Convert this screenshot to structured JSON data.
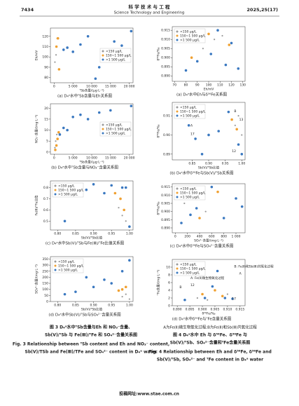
{
  "header": {
    "page": "7434",
    "journal_cn": "科 学 技 术 与 工 程",
    "journal_en": "Science Technology and Engineering",
    "issue": "2025,25(17)"
  },
  "chart_data": [
    {
      "type": "scatter",
      "caption": "(a) D₄ᵃ水中ᵀSb含量与Eh关系图",
      "xlabel": "ᵀSb含量/(μg·L⁻¹)",
      "ylabel": "Eh/mV",
      "xlim": [
        -1000,
        21000
      ],
      "ylim": [
        75,
        128
      ],
      "xticks": [
        0,
        {
          "value": 5000,
          "label": "5 000"
        },
        {
          "value": 10000,
          "label": "10 000"
        },
        {
          "value": 15000,
          "label": "15 000"
        },
        {
          "value": 20000,
          "label": "20 000"
        }
      ],
      "yticks": [
        80,
        90,
        100,
        110,
        120
      ],
      "legend": "center right",
      "series": [
        {
          "name": "<150 μg/L",
          "color": "#9a9a9a",
          "x": [
            200,
            500,
            800
          ],
          "y": [
            95,
            102,
            118
          ]
        },
        {
          "name": "150~1 500 μg/L",
          "color": "#f0a030",
          "x": [
            600,
            1000,
            1300
          ],
          "y": [
            110,
            118,
            88
          ]
        },
        {
          "name": ">1 500 μg/L",
          "color": "#3a78c0",
          "x": [
            2500,
            3500,
            5000,
            7000,
            9000,
            11000,
            12000,
            16000,
            18000,
            20500
          ],
          "y": [
            107,
            109,
            105,
            112,
            120,
            79,
            90,
            115,
            111,
            125
          ]
        }
      ]
    },
    {
      "type": "scatter",
      "caption": "(b) D₄ᵃ水中ᵀSb含量与NO₃⁻含量关系图",
      "xlabel": "ᵀSb含量/(μg·L⁻¹)",
      "ylabel": "NO₃⁻含量/(mg·L⁻¹)",
      "xlim": [
        -1000,
        21000
      ],
      "ylim": [
        -1,
        22
      ],
      "xticks": [
        0,
        {
          "value": 5000,
          "label": "5 000"
        },
        {
          "value": 10000,
          "label": "10 000"
        },
        {
          "value": 15000,
          "label": "15 000"
        },
        {
          "value": 20000,
          "label": "20 000"
        }
      ],
      "yticks": [
        0,
        5,
        10,
        15,
        20
      ],
      "legend": "center right",
      "series": [
        {
          "name": "<150 μg/L",
          "color": "#9a9a9a",
          "x": [
            200,
            400,
            700
          ],
          "y": [
            2,
            5,
            8
          ]
        },
        {
          "name": "150~1 500 μg/L",
          "color": "#f0a030",
          "x": [
            300,
            600,
            900,
            1200
          ],
          "y": [
            1,
            3,
            6,
            9
          ]
        },
        {
          "name": ">1 500 μg/L",
          "color": "#3a78c0",
          "x": [
            1500,
            2500,
            3500,
            5000,
            7000,
            9000,
            12000,
            15000,
            20500
          ],
          "y": [
            8,
            11,
            10,
            16,
            17,
            15,
            18,
            19,
            21
          ]
        }
      ]
    },
    {
      "type": "scatter",
      "caption": "(c) D₄ᵃ水中Sb(Ⅴ)/ᵀSb与Fe(Ⅲ)/ᵀFe比值关系图",
      "xlabel": "Sb(Ⅴ)/ᵀSb比值",
      "ylabel": "Fe(Ⅲ)/ᵀFe比值",
      "xlim": [
        0.78,
        1.01
      ],
      "ylim": [
        0.42,
        0.86
      ],
      "xticks": [
        {
          "value": 0.8,
          "label": "0.80"
        },
        {
          "value": 0.85,
          "label": "0.85"
        },
        {
          "value": 0.9,
          "label": "0.90"
        },
        {
          "value": 0.95,
          "label": "0.95"
        },
        {
          "value": 1,
          "label": "1.00"
        }
      ],
      "yticks": [
        0.5,
        0.6,
        0.7,
        0.8
      ],
      "legend": "upper left",
      "series": [
        {
          "name": "<150 μg/L",
          "color": "#9a9a9a",
          "x": [
            0.97,
            0.98,
            0.99
          ],
          "y": [
            0.62,
            0.55,
            0.5
          ]
        },
        {
          "name": "150~1 500 μg/L",
          "color": "#f0a030",
          "x": [
            0.96,
            0.975,
            0.985
          ],
          "y": [
            0.75,
            0.7,
            0.6
          ]
        },
        {
          "name": ">1 500 μg/L",
          "color": "#3a78c0",
          "x": [
            0.82,
            0.85,
            0.88,
            0.9,
            0.93,
            0.95,
            0.98,
            0.99,
            1
          ],
          "y": [
            0.5,
            0.79,
            0.78,
            0.83,
            0.75,
            0.82,
            0.8,
            0.8,
            0.45
          ]
        }
      ]
    },
    {
      "type": "scatter",
      "caption": "(d) D₄ᵃ水中Sb(Ⅴ)/ᵀSb与SO₄²⁻含量关系图",
      "xlabel": "Sb(Ⅴ)/ᵀSb比值",
      "ylabel": "SO₄²⁻含量/(mg·L⁻¹)",
      "xlim": [
        0.78,
        1.01
      ],
      "ylim": [
        0,
        370
      ],
      "xticks": [
        {
          "value": 0.8,
          "label": "0.80"
        },
        {
          "value": 0.85,
          "label": "0.85"
        },
        {
          "value": 0.9,
          "label": "0.90"
        },
        {
          "value": 0.95,
          "label": "0.95"
        },
        {
          "value": 1,
          "label": "1.00"
        }
      ],
      "yticks": [
        0,
        50,
        100,
        150,
        200,
        250,
        300,
        350
      ],
      "legend": "upper left",
      "series": [
        {
          "name": "<150 μg/L",
          "color": "#9a9a9a",
          "x": [
            0.98,
            0.99,
            1
          ],
          "y": [
            40,
            60,
            20
          ]
        },
        {
          "name": "150~1 500 μg/L",
          "color": "#f0a030",
          "x": [
            0.97,
            0.98,
            0.99
          ],
          "y": [
            90,
            100,
            120
          ]
        },
        {
          "name": ">1 500 μg/L",
          "color": "#3a78c0",
          "x": [
            0.82,
            0.85,
            0.88,
            0.9,
            0.93,
            0.95,
            0.98,
            1
          ],
          "y": [
            60,
            80,
            200,
            120,
            180,
            150,
            250,
            340
          ]
        }
      ]
    },
    {
      "type": "scatter",
      "caption": "(a) D₄ᵃ水中Eh与δ⁵⁶Fe关系图",
      "xlabel": "Eh/mV",
      "ylabel": "δ⁵⁶Fe/‰",
      "xlim": [
        68,
        132
      ],
      "ylim": [
        0.887,
        0.917
      ],
      "xticks": [
        70,
        80,
        90,
        100,
        110,
        120,
        130
      ],
      "yticks": [
        {
          "value": 0.89,
          "label": "0.890"
        },
        {
          "value": 0.895,
          "label": "0.895"
        },
        {
          "value": 0.9,
          "label": "0.900"
        },
        {
          "value": 0.905,
          "label": "0.905"
        },
        {
          "value": 0.91,
          "label": "0.910"
        },
        {
          "value": 0.915,
          "label": "0.915"
        }
      ],
      "legend": "upper left",
      "series": [
        {
          "name": "<150 μg/L",
          "color": "#9a9a9a",
          "x": [
            95,
            105,
            112
          ],
          "y": [
            0.905,
            0.91,
            0.912
          ]
        },
        {
          "name": "150~1 500 μg/L",
          "color": "#f0a030",
          "x": [
            85,
            100,
            118
          ],
          "y": [
            0.9,
            0.913,
            0.907
          ]
        },
        {
          "name": ">1 500 μg/L",
          "color": "#3a78c0",
          "x": [
            80,
            90,
            102,
            108,
            115,
            120,
            126
          ],
          "y": [
            0.893,
            0.898,
            0.902,
            0.915,
            0.896,
            0.908,
            0.894
          ]
        }
      ]
    },
    {
      "type": "scatter",
      "caption": "(b) D₄ᵃ水中δ⁵⁶Fe与Sb(Ⅴ)/ᵀSb关系图",
      "xlabel": "Sb(Ⅴ)/ᵀSb比值",
      "ylabel": "δ⁵⁶Fe/‰",
      "xlim": [
        0.79,
        1.01
      ],
      "ylim": [
        0.887,
        0.917
      ],
      "xticks": [
        {
          "value": 0.85,
          "label": "0.85"
        },
        {
          "value": 0.9,
          "label": "0.90"
        },
        {
          "value": 0.95,
          "label": "0.95"
        },
        {
          "value": 1,
          "label": "1.00"
        }
      ],
      "yticks": [
        {
          "value": 0.89,
          "label": "0.89"
        },
        {
          "value": 0.9,
          "label": "0.90"
        },
        {
          "value": 0.91,
          "label": "0.91"
        }
      ],
      "legend": "upper left",
      "annotations": [
        "A",
        "B",
        "17",
        "12",
        "13"
      ],
      "series": [
        {
          "name": "<150 μg/L",
          "color": "#9a9a9a",
          "x": [
            0.98,
            0.99,
            1
          ],
          "y": [
            0.905,
            0.91,
            0.9
          ]
        },
        {
          "name": "150~1 500 μg/L",
          "color": "#f0a030",
          "x": [
            0.97,
            0.985
          ],
          "y": [
            0.908,
            0.903
          ]
        },
        {
          "name": ">1 500 μg/L",
          "color": "#3a78c0",
          "x": [
            0.82,
            0.84,
            0.86,
            0.88,
            0.9,
            0.93,
            0.96,
            0.99,
            1
          ],
          "y": [
            0.91,
            0.905,
            0.898,
            0.89,
            0.9,
            0.902,
            0.912,
            0.895,
            0.89
          ]
        }
      ]
    },
    {
      "type": "scatter",
      "caption": "(c) D₄ᵃ水中δ⁵⁶Fe与SO₄²⁻含量关系图",
      "xlabel": "SO₄²⁻含量/(mg·L⁻¹)",
      "ylabel": "δ⁵⁶Fe/‰",
      "xlim": [
        -50,
        1150
      ],
      "ylim": [
        0.887,
        0.917
      ],
      "xticks": [
        0,
        200,
        400,
        600,
        800,
        {
          "value": 1000,
          "label": "1 000"
        }
      ],
      "yticks": [
        {
          "value": 0.89,
          "label": "0.890"
        },
        {
          "value": 0.895,
          "label": "0.895"
        },
        {
          "value": 0.9,
          "label": "0.900"
        },
        {
          "value": 0.905,
          "label": "0.905"
        },
        {
          "value": 0.91,
          "label": "0.910"
        },
        {
          "value": 0.915,
          "label": "0.915"
        }
      ],
      "legend": "upper left",
      "series": [
        {
          "name": "<150 μg/L",
          "color": "#9a9a9a",
          "x": [
            150,
            300,
            500
          ],
          "y": [
            0.905,
            0.91,
            0.9
          ]
        },
        {
          "name": "150~1 500 μg/L",
          "color": "#f0a030",
          "x": [
            200,
            400,
            700
          ],
          "y": [
            0.908,
            0.896,
            0.912
          ]
        },
        {
          "name": ">1 500 μg/L",
          "color": "#3a78c0",
          "x": [
            100,
            250,
            350,
            600,
            800,
            1000,
            1100
          ],
          "y": [
            0.893,
            0.898,
            0.902,
            0.915,
            0.896,
            0.908,
            0.903
          ]
        }
      ]
    },
    {
      "type": "scatter",
      "caption": "(d) D₄ᵃ水中δ⁵⁶Fe与ᵀFe含量关系图",
      "xlabel": "δ⁵⁶Fe/‰",
      "ylabel": "ᵀFe含量/(mg·L⁻¹)",
      "xlim": [
        0.888,
        0.917
      ],
      "ylim": [
        0,
        12
      ],
      "xticks": [
        {
          "value": 0.89,
          "label": "0.890"
        },
        {
          "value": 0.895,
          "label": "0.895"
        },
        {
          "value": 0.9,
          "label": "0.900"
        },
        {
          "value": 0.905,
          "label": "0.905"
        },
        {
          "value": 0.91,
          "label": "0.910"
        },
        {
          "value": 0.915,
          "label": "0.915"
        }
      ],
      "yticks": [
        0,
        2,
        4,
        6,
        8,
        10
      ],
      "legend": "upper left",
      "annotations": [
        "A: Fe(Ⅱ)微生物氧化过程",
        "B: Fe(Ⅱ)和Sb(Ⅲ)共氧化过程",
        "12",
        "17",
        "A",
        "B"
      ],
      "series": [
        {
          "name": "<150 μg/L",
          "color": "#9a9a9a",
          "x": [
            0.898,
            0.902,
            0.91
          ],
          "y": [
            2,
            1.5,
            3
          ]
        },
        {
          "name": "150~1 500 μg/L",
          "color": "#f0a030",
          "x": [
            0.9,
            0.905,
            0.908
          ],
          "y": [
            3,
            4,
            2.5
          ]
        },
        {
          "name": ">1 500 μg/L",
          "color": "#3a78c0",
          "x": [
            0.893,
            0.901,
            0.904,
            0.906,
            0.909,
            0.912
          ],
          "y": [
            1.5,
            2,
            5,
            9,
            2,
            1.8
          ]
        }
      ]
    }
  ],
  "figure3": {
    "caption_cn": [
      "图 3  D₄ᵃ水中ᵀSb含量与Eh 和 NO₃⁻含量、",
      "Sb(Ⅴ)/ᵀSb 与 Fe(Ⅲ)/ᵀFe 和 SO₄²⁻含量关系图"
    ],
    "caption_en": [
      "Fig. 3  Relationship between ᵀSb content and Eh and NO₃⁻ content,",
      "Sb(Ⅴ)/TSb and Fe(Ⅲ)/TFe and SO₄²⁻ content in D₄ᵃ water"
    ]
  },
  "figure4": {
    "note": "A为Fe(Ⅱ)微生物氧化过程;B为Fe(Ⅱ)和Sb(Ⅲ)共氧化过程",
    "caption_cn": [
      "图 4  D₄ᵃ水中 Eh 与 δ⁵⁶Fe、δ⁵⁶Fe 与",
      "Sb(Ⅴ)/ᵀSb、SO₄²⁻含量和ᵀFe含量关系图"
    ],
    "caption_en": [
      "Fig. 4  Relationship between Eh and δ⁵⁶Fe, δ⁵⁶Fe and",
      "Sb(Ⅴ)/ᵀSb, SO₄²⁻ and ᵀFe content in D₄ᵃ water"
    ]
  },
  "footer": "投稿网址:www.stae.com.cn"
}
